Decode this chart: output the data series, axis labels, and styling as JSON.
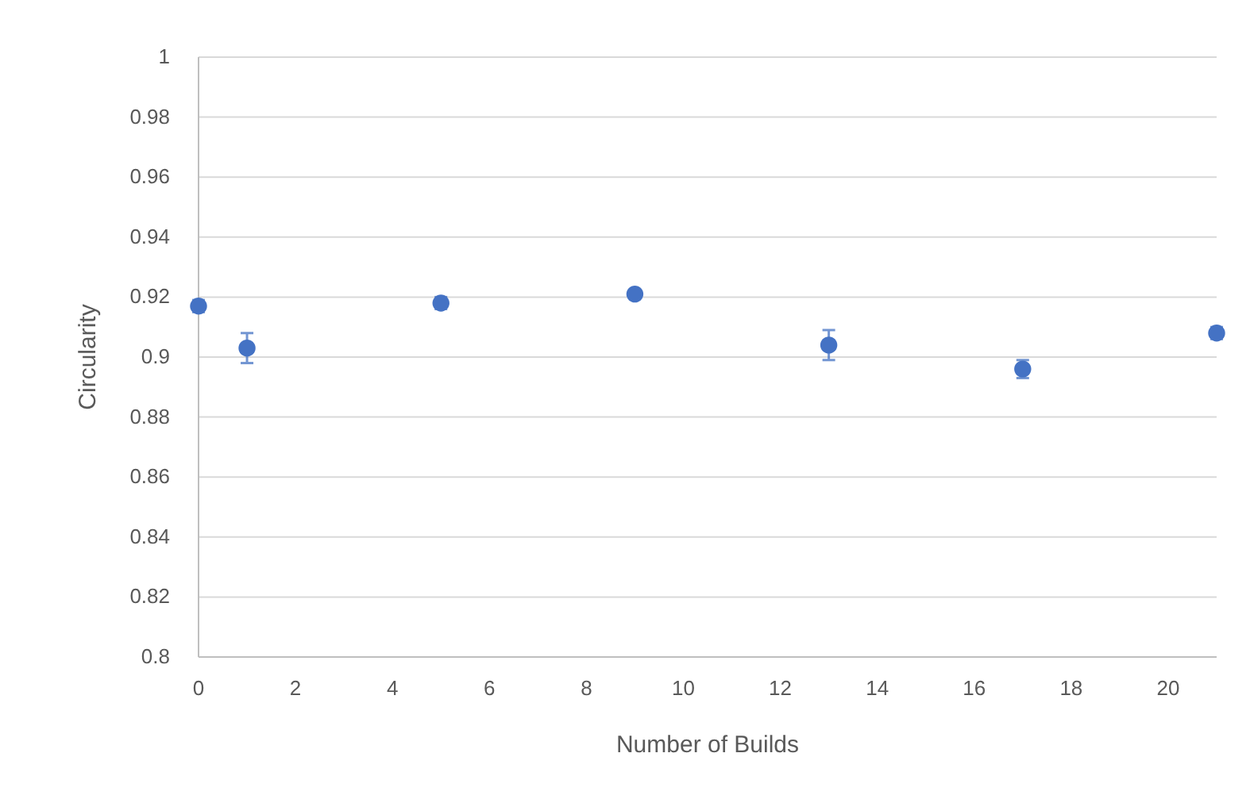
{
  "chart_data": {
    "type": "scatter",
    "xlabel": "Number of Builds",
    "ylabel": "Circularity",
    "x": [
      0,
      1,
      5,
      9,
      13,
      17,
      21
    ],
    "series": [
      {
        "color": "#4472c4",
        "values": [
          0.917,
          0.903,
          0.918,
          0.921,
          0.904,
          0.896,
          0.908
        ],
        "errors": [
          0.002,
          0.005,
          0.002,
          0.001,
          0.005,
          0.003,
          0.002
        ]
      }
    ],
    "xlim": [
      0,
      21
    ],
    "xticks": [
      0,
      2,
      4,
      6,
      8,
      10,
      12,
      14,
      16,
      18,
      20
    ],
    "ylim": [
      0.8,
      1
    ],
    "yticks": [
      0.8,
      0.82,
      0.84,
      0.86,
      0.88,
      0.9,
      0.92,
      0.94,
      0.96,
      0.98,
      1
    ],
    "grid": "y",
    "marker": "circle"
  }
}
